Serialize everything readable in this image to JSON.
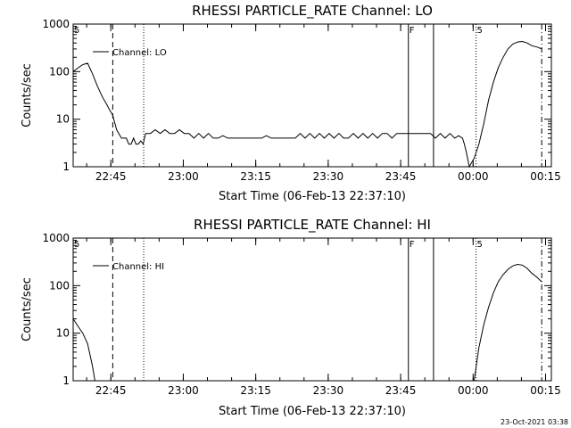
{
  "chart_data": [
    {
      "type": "line",
      "title": "RHESSI PARTICLE_RATE Channel: LO",
      "xlabel": "Start Time (06-Feb-13 22:37:10)",
      "ylabel": "Counts/sec",
      "yscale": "log",
      "ylim": [
        1,
        1000
      ],
      "xlim_minutes": [
        0,
        99
      ],
      "x_tick_labels": [
        "22:45",
        "23:00",
        "23:15",
        "23:30",
        "23:45",
        "00:00",
        "00:15"
      ],
      "x_tick_minutes": [
        7.8,
        22.8,
        37.8,
        52.8,
        67.8,
        82.8,
        97.8
      ],
      "y_tick_labels": [
        "1",
        "10",
        "100",
        "1000"
      ],
      "y_tick_values": [
        1,
        10,
        100,
        1000
      ],
      "legend": {
        "label": "Channel: LO",
        "position": "top-left"
      },
      "markers": [
        {
          "minute": 8.2,
          "style": "dashed",
          "label": ""
        },
        {
          "minute": 14.6,
          "style": "dotted",
          "label": ""
        },
        {
          "minute": 69.4,
          "style": "solid",
          "label": "F"
        },
        {
          "minute": 74.6,
          "style": "solid",
          "label": ""
        },
        {
          "minute": 83.4,
          "style": "dotted",
          "label": "5"
        },
        {
          "minute": 97.0,
          "style": "dashdot",
          "label": ""
        }
      ],
      "corner_label": "5",
      "series": [
        {
          "x": [
            0,
            1,
            2,
            3,
            4,
            5,
            6,
            7,
            7.5,
            8.2,
            9,
            10,
            11,
            11.5,
            12,
            12.5,
            13,
            13.5,
            14,
            14.5,
            15,
            16,
            17,
            18,
            19,
            20,
            21,
            22,
            23,
            24,
            25,
            26,
            27,
            28,
            29,
            30,
            31,
            32,
            33,
            34,
            35,
            36,
            37,
            38,
            39,
            40,
            41,
            42,
            43,
            44,
            45,
            46,
            47,
            48,
            49,
            50,
            51,
            52,
            53,
            54,
            55,
            56,
            57,
            58,
            59,
            60,
            61,
            62,
            63,
            64,
            65,
            66,
            67,
            68,
            69,
            70,
            71,
            72,
            73,
            74,
            75,
            76,
            77,
            78,
            79,
            79.8,
            80.6,
            81,
            81.4,
            82,
            83,
            84,
            85,
            86,
            87,
            88,
            89,
            90,
            91,
            92,
            93,
            94,
            95,
            96,
            97
          ],
          "values": [
            100,
            120,
            140,
            150,
            90,
            50,
            30,
            20,
            16,
            12,
            6,
            4,
            4,
            3,
            3,
            4,
            3,
            3,
            3.5,
            3,
            5,
            5,
            6,
            5,
            6,
            5,
            5,
            6,
            5,
            5,
            4,
            5,
            4,
            5,
            4,
            4,
            4.5,
            4,
            4,
            4,
            4,
            4,
            4,
            4,
            4,
            4.5,
            4,
            4,
            4,
            4,
            4,
            4,
            5,
            4,
            5,
            4,
            5,
            4,
            5,
            4,
            5,
            4,
            4,
            5,
            4,
            5,
            4,
            5,
            4,
            5,
            5,
            4,
            5,
            5,
            5,
            5,
            5,
            5,
            5,
            5,
            4,
            5,
            4,
            5,
            4,
            4.5,
            4,
            3,
            2,
            1,
            1.5,
            3,
            8,
            25,
            60,
            120,
            200,
            300,
            380,
            420,
            430,
            400,
            350,
            330,
            300
          ]
        }
      ]
    },
    {
      "type": "line",
      "title": "RHESSI PARTICLE_RATE Channel: HI",
      "xlabel": "Start Time (06-Feb-13 22:37:10)",
      "ylabel": "Counts/sec",
      "yscale": "log",
      "ylim": [
        1,
        1000
      ],
      "xlim_minutes": [
        0,
        99
      ],
      "x_tick_labels": [
        "22:45",
        "23:00",
        "23:15",
        "23:30",
        "23:45",
        "00:00",
        "00:15"
      ],
      "x_tick_minutes": [
        7.8,
        22.8,
        37.8,
        52.8,
        67.8,
        82.8,
        97.8
      ],
      "y_tick_labels": [
        "1",
        "10",
        "100",
        "1000"
      ],
      "y_tick_values": [
        1,
        10,
        100,
        1000
      ],
      "legend": {
        "label": "Channel: HI",
        "position": "top-left"
      },
      "markers": [
        {
          "minute": 8.2,
          "style": "dashed",
          "label": ""
        },
        {
          "minute": 14.6,
          "style": "dotted",
          "label": ""
        },
        {
          "minute": 69.4,
          "style": "solid",
          "label": "F"
        },
        {
          "minute": 74.6,
          "style": "solid",
          "label": ""
        },
        {
          "minute": 83.4,
          "style": "dotted",
          "label": "5"
        },
        {
          "minute": 97.0,
          "style": "dashdot",
          "label": ""
        }
      ],
      "corner_label": "5",
      "series": [
        {
          "x": [
            0,
            1,
            2,
            3,
            4,
            4.5,
            83,
            84,
            85,
            86,
            87,
            88,
            89,
            90,
            91,
            92,
            93,
            94,
            95,
            96,
            97
          ],
          "values": [
            20,
            14,
            10,
            6,
            2,
            1,
            1,
            5,
            15,
            35,
            70,
            120,
            170,
            220,
            260,
            280,
            270,
            230,
            180,
            150,
            120
          ]
        }
      ]
    }
  ],
  "footer": {
    "timestamp": "23-Oct-2021 03:38"
  }
}
